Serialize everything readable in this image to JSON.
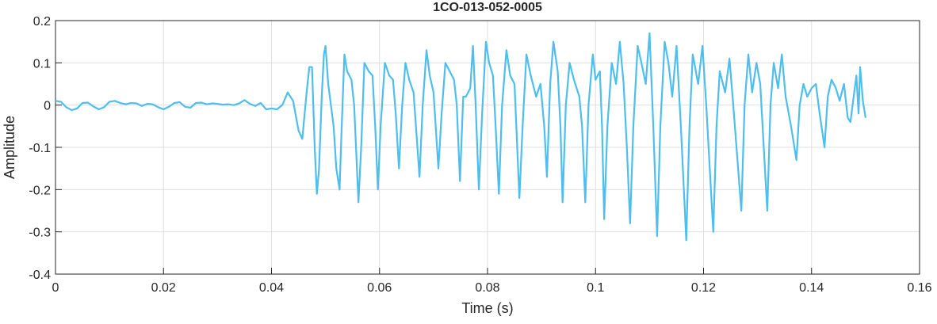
{
  "chart_data": {
    "type": "line",
    "title": "1CO-013-052-0005",
    "x_label": "Time (s)",
    "y_label": "Amplitude",
    "x": [
      0,
      0.001,
      0.002,
      0.003,
      0.004,
      0.005,
      0.006,
      0.007,
      0.008,
      0.009,
      0.01,
      0.011,
      0.012,
      0.013,
      0.014,
      0.015,
      0.016,
      0.017,
      0.018,
      0.019,
      0.02,
      0.021,
      0.022,
      0.023,
      0.024,
      0.025,
      0.026,
      0.027,
      0.028,
      0.029,
      0.03,
      0.031,
      0.032,
      0.033,
      0.034,
      0.035,
      0.036,
      0.037,
      0.038,
      0.039,
      0.04,
      0.041,
      0.042,
      0.043,
      0.044,
      0.045,
      0.0457,
      0.0465,
      0.047,
      0.0475,
      0.048,
      0.0484,
      0.0488,
      0.0493,
      0.0497,
      0.05,
      0.0505,
      0.051,
      0.0515,
      0.052,
      0.0526,
      0.053,
      0.0535,
      0.054,
      0.0548,
      0.0553,
      0.0561,
      0.0566,
      0.0572,
      0.058,
      0.0587,
      0.0592,
      0.0597,
      0.0602,
      0.061,
      0.0618,
      0.0625,
      0.063,
      0.0636,
      0.0642,
      0.0648,
      0.0655,
      0.0663,
      0.0668,
      0.0674,
      0.068,
      0.0687,
      0.0693,
      0.07,
      0.0709,
      0.0715,
      0.0722,
      0.073,
      0.0738,
      0.0743,
      0.0749,
      0.0755,
      0.076,
      0.0768,
      0.0773,
      0.0778,
      0.0784,
      0.079,
      0.0797,
      0.0803,
      0.081,
      0.0815,
      0.0821,
      0.0827,
      0.0835,
      0.0842,
      0.085,
      0.0859,
      0.0865,
      0.0872,
      0.088,
      0.089,
      0.0898,
      0.0905,
      0.091,
      0.0916,
      0.0922,
      0.093,
      0.0935,
      0.0939,
      0.0945,
      0.0952,
      0.096,
      0.097,
      0.0975,
      0.0981,
      0.0987,
      0.0995,
      0.1,
      0.1008,
      0.1012,
      0.1016,
      0.1022,
      0.103,
      0.1038,
      0.1045,
      0.1052,
      0.1058,
      0.1064,
      0.107,
      0.1078,
      0.1085,
      0.1093,
      0.11,
      0.1107,
      0.1114,
      0.112,
      0.1128,
      0.1135,
      0.1142,
      0.115,
      0.1158,
      0.1168,
      0.1174,
      0.118,
      0.119,
      0.1198,
      0.1205,
      0.1218,
      0.1224,
      0.123,
      0.124,
      0.1248,
      0.1255,
      0.127,
      0.1276,
      0.1283,
      0.129,
      0.1298,
      0.1305,
      0.1318,
      0.1324,
      0.133,
      0.1338,
      0.1345,
      0.1352,
      0.1362,
      0.1372,
      0.1378,
      0.1385,
      0.1392,
      0.14,
      0.1408,
      0.1415,
      0.1424,
      0.143,
      0.1437,
      0.1445,
      0.1452,
      0.146,
      0.1467,
      0.1472,
      0.1478,
      0.1483,
      0.1487,
      0.149,
      0.1495,
      0.15
    ],
    "series": [
      {
        "name": "Amplitude",
        "color": "#4dbeee",
        "values": [
          0.01,
          0.008,
          -0.005,
          -0.012,
          -0.008,
          0.005,
          0.006,
          -0.003,
          -0.01,
          -0.005,
          0.008,
          0.01,
          0.005,
          0.002,
          0.005,
          0.004,
          -0.002,
          0.003,
          0.002,
          -0.005,
          -0.01,
          -0.004,
          0.005,
          0.007,
          -0.004,
          -0.006,
          0.005,
          0.006,
          0.002,
          0.004,
          0.003,
          0.001,
          0.002,
          0,
          0.004,
          0.012,
          0.003,
          -0.002,
          0.005,
          -0.01,
          -0.008,
          -0.01,
          0,
          0.03,
          0.01,
          -0.06,
          -0.08,
          0.03,
          0.09,
          0.09,
          -0.1,
          -0.21,
          -0.15,
          0.02,
          0.12,
          0.14,
          0.05,
          0,
          -0.05,
          -0.15,
          -0.2,
          -0.05,
          0.12,
          0.08,
          0.06,
          0,
          -0.23,
          -0.1,
          0.1,
          0.08,
          0.07,
          -0.05,
          -0.2,
          -0.05,
          0.1,
          0.07,
          0.06,
          -0.02,
          -0.15,
          0,
          0.1,
          0.06,
          0.03,
          -0.06,
          -0.17,
          0,
          0.13,
          0.07,
          0.03,
          -0.15,
          -0.02,
          0.1,
          0.08,
          0.06,
          0,
          -0.18,
          0.02,
          0.02,
          0.04,
          0.14,
          0,
          -0.2,
          -0.02,
          0.15,
          0.1,
          0.07,
          -0.05,
          -0.21,
          0,
          0.13,
          0.07,
          0.05,
          -0.22,
          -0.05,
          0.12,
          0.07,
          0.02,
          0.05,
          -0.05,
          -0.17,
          0.05,
          0.15,
          0.08,
          -0.05,
          -0.23,
          0,
          0.1,
          0.06,
          0.02,
          -0.05,
          -0.23,
          0,
          0.12,
          0.06,
          0.08,
          -0.05,
          -0.27,
          -0.05,
          0.1,
          0.05,
          0.15,
          0.05,
          -0.1,
          -0.28,
          -0.05,
          0.14,
          0.1,
          0.05,
          0.17,
          -0.05,
          -0.31,
          -0.05,
          0.15,
          0.1,
          0.02,
          0.14,
          -0.05,
          -0.32,
          -0.05,
          0.12,
          0.05,
          0.14,
          0,
          -0.3,
          -0.05,
          0.08,
          0.03,
          0.11,
          0,
          -0.25,
          0,
          0.12,
          0.03,
          0.1,
          0.05,
          -0.25,
          0,
          0.1,
          0.04,
          0.12,
          0.02,
          -0.05,
          -0.13,
          0,
          0.05,
          0.02,
          0.04,
          0.05,
          -0.02,
          -0.1,
          0.02,
          0.06,
          0.04,
          0.01,
          0.05,
          -0.03,
          -0.04,
          0.02,
          0.07,
          -0.02,
          0.09,
          0.01,
          -0.03
        ]
      }
    ],
    "xlim": [
      0,
      0.16
    ],
    "xticks": [
      0,
      0.02,
      0.04,
      0.06,
      0.08,
      0.1,
      0.12,
      0.14,
      0.16
    ],
    "ylim": [
      -0.4,
      0.2
    ],
    "yticks": [
      -0.4,
      -0.3,
      -0.2,
      -0.1,
      0,
      0.1,
      0.2
    ],
    "grid": true
  }
}
